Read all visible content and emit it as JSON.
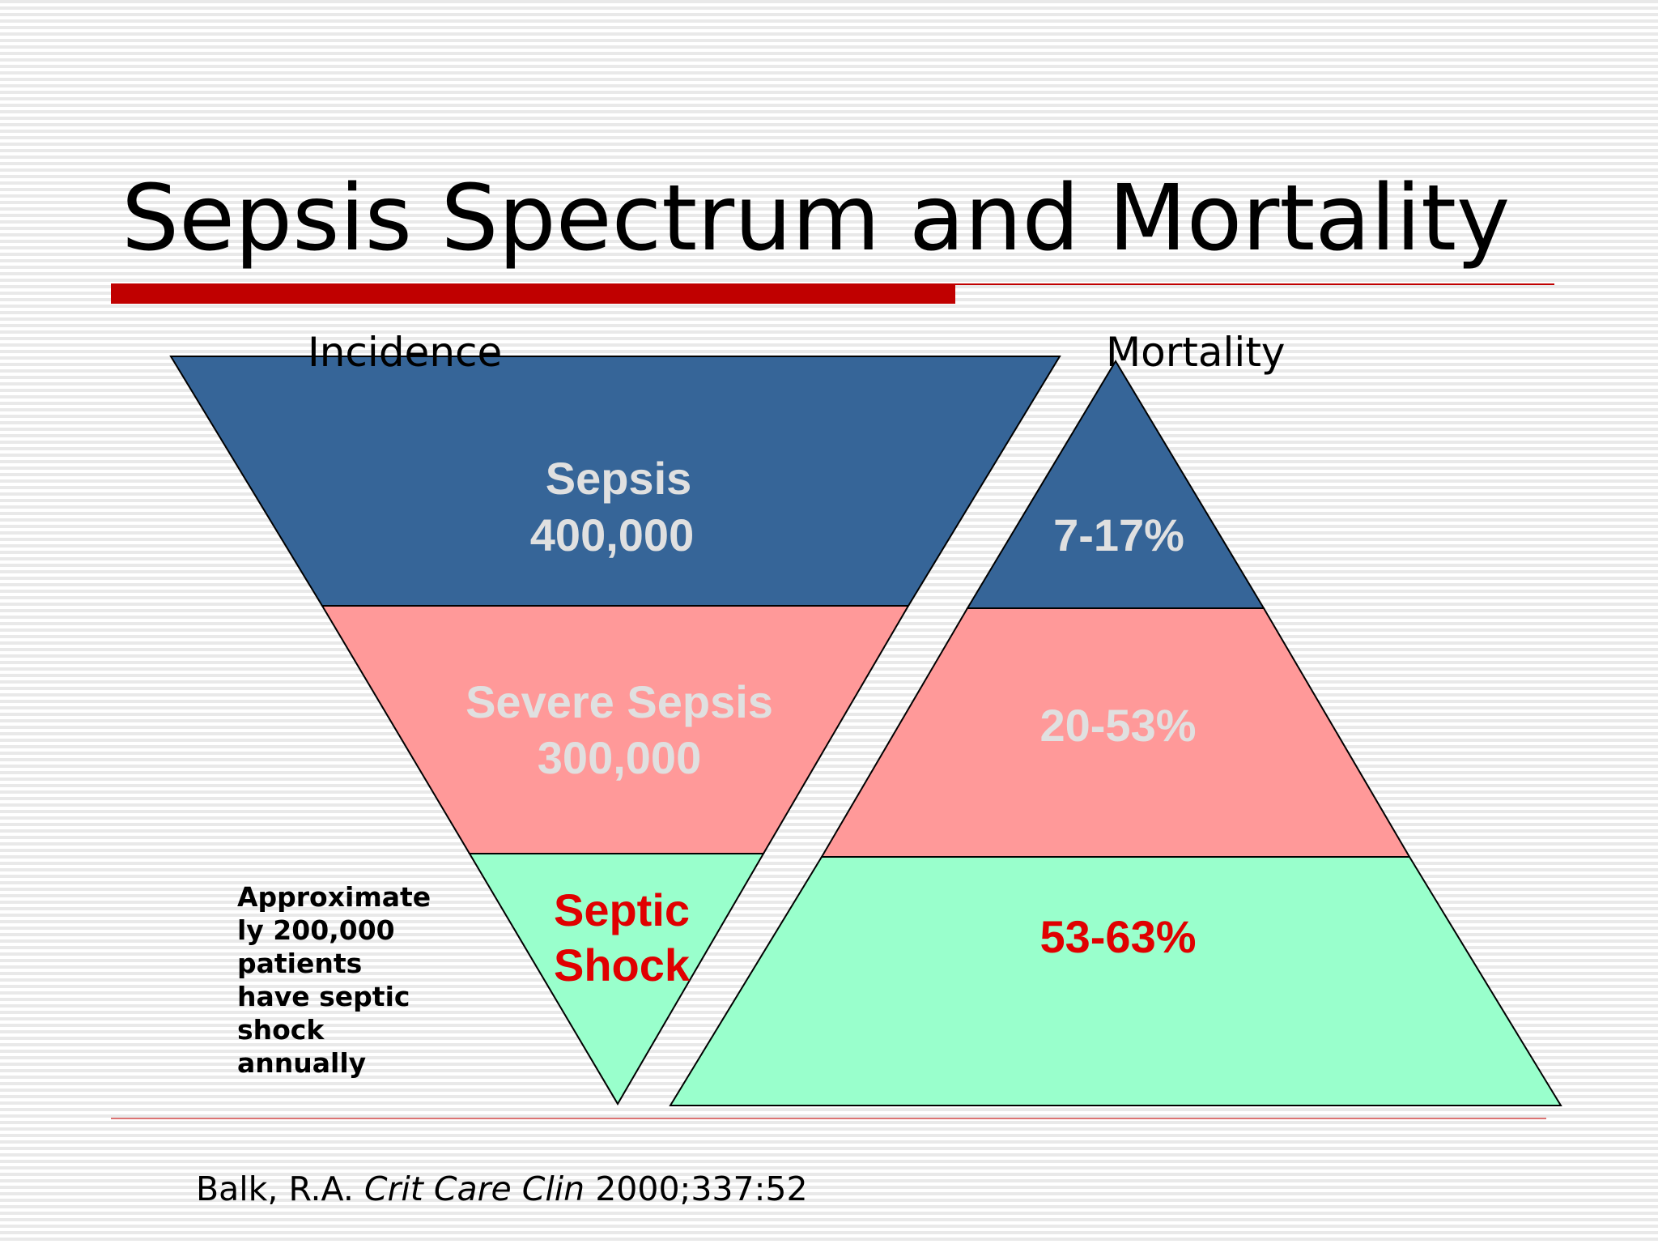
{
  "slide": {
    "title": "Sepsis Spectrum and Mortality",
    "colors": {
      "accent_red": "#c00000",
      "tier_sepsis": "#366598",
      "tier_severe": "#ff9999",
      "tier_shock": "#99ffcc",
      "label_light": "#e0e0e0",
      "label_red": "#e00000"
    }
  },
  "incidence": {
    "header": "Incidence",
    "tiers": [
      {
        "name": "Sepsis",
        "value": "400,000"
      },
      {
        "name": "Severe Sepsis",
        "value": "300,000"
      },
      {
        "name": "Septic",
        "value": "Shock"
      }
    ]
  },
  "mortality": {
    "header": "Mortality",
    "tiers": [
      {
        "value": "7-17%"
      },
      {
        "value": "20-53%"
      },
      {
        "value": "53-63%"
      }
    ]
  },
  "note": "Approximate\nly 200,000\npatients\nhave septic\nshock\nannually",
  "citation": {
    "author": "Balk, R.A. ",
    "journal": "Crit Care Clin",
    "details": " 2000;337:52"
  }
}
